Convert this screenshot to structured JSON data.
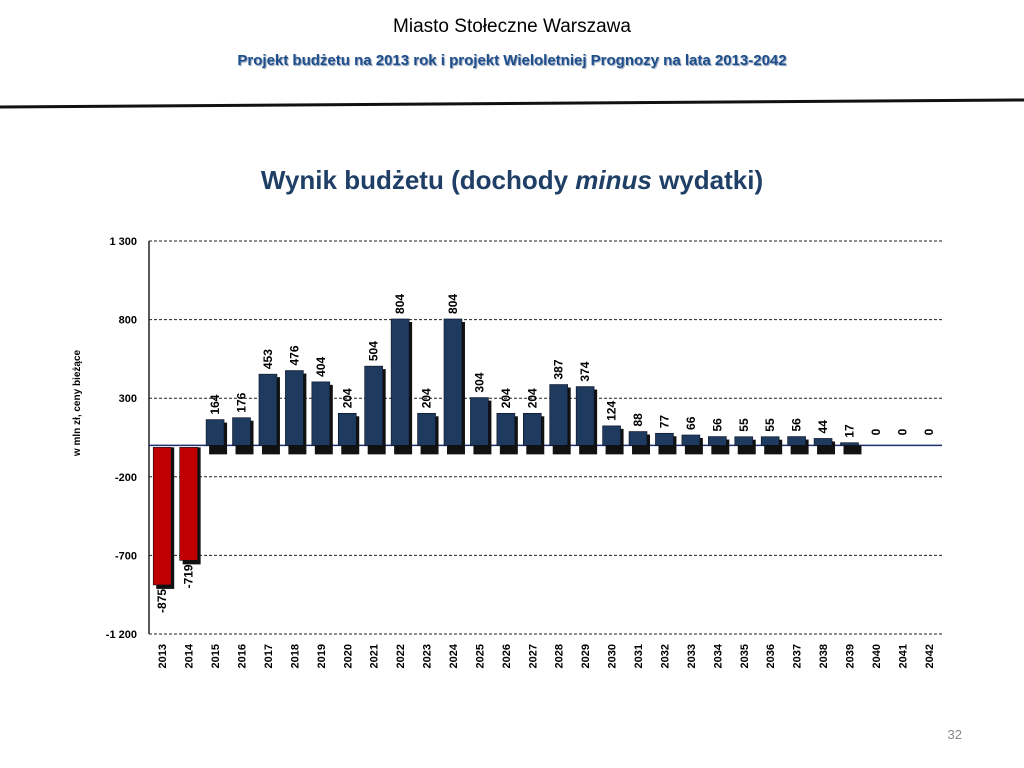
{
  "header": {
    "title": "Miasto Stołeczne Warszawa",
    "subtitle": "Projekt budżetu na 2013 rok i projekt Wieloletniej Prognozy na lata 2013-2042"
  },
  "chart_title": {
    "part1": "Wynik budżetu (dochody ",
    "part2": "minus",
    "part3": " wydatki)"
  },
  "page_number": "32",
  "colors": {
    "positive_bar": "#1f3a5f",
    "negative_bar": "#c00000",
    "title": "#1f3f66",
    "subtitle": "#1f4e8c"
  },
  "chart_data": {
    "type": "bar",
    "title": "Wynik budżetu (dochody minus wydatki)",
    "ylabel": "w mln zł, ceny bieżące",
    "xlabel": "",
    "ylim": [
      -1200,
      1300
    ],
    "yticks": [
      1300,
      800,
      300,
      -200,
      -700,
      -1200
    ],
    "ytick_labels": [
      "1 300",
      "800",
      "300",
      "-200",
      "-700",
      "-1 200"
    ],
    "grid": "horizontal dashed",
    "categories": [
      "2013",
      "2014",
      "2015",
      "2016",
      "2017",
      "2018",
      "2019",
      "2020",
      "2021",
      "2022",
      "2023",
      "2024",
      "2025",
      "2026",
      "2027",
      "2028",
      "2029",
      "2030",
      "2031",
      "2032",
      "2033",
      "2034",
      "2035",
      "2036",
      "2037",
      "2038",
      "2039",
      "2040",
      "2041",
      "2042"
    ],
    "values": [
      -875,
      -719,
      164,
      176,
      453,
      476,
      404,
      204,
      504,
      804,
      204,
      804,
      304,
      204,
      204,
      387,
      374,
      124,
      88,
      77,
      66,
      56,
      55,
      55,
      56,
      44,
      17,
      0,
      0,
      0
    ],
    "data_labels": [
      "-875",
      "-719",
      "164",
      "176",
      "453",
      "476",
      "404",
      "204",
      "504",
      "804",
      "204",
      "804",
      "304",
      "204",
      "204",
      "387",
      "374",
      "124",
      "88",
      "77",
      "66",
      "56",
      "55",
      "55",
      "56",
      "44",
      "17",
      "0",
      "0",
      "0"
    ]
  }
}
